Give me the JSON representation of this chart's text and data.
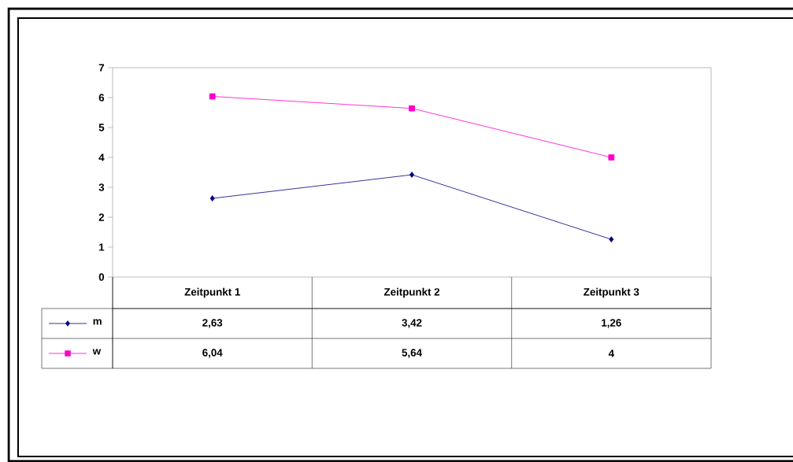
{
  "chart_data": {
    "type": "line",
    "categories": [
      "Zeitpunkt 1",
      "Zeitpunkt 2",
      "Zeitpunkt 3"
    ],
    "series": [
      {
        "name": "m",
        "color": "#000080",
        "marker": "diamond",
        "values": [
          2.63,
          3.42,
          1.26
        ],
        "value_labels": [
          "2,63",
          "3,42",
          "1,26"
        ]
      },
      {
        "name": "w",
        "color": "#ff00cc",
        "marker": "square",
        "values": [
          6.04,
          5.64,
          4
        ],
        "value_labels": [
          "6,04",
          "5,64",
          "4"
        ]
      }
    ],
    "ylim": [
      0,
      7
    ],
    "yticks": [
      0,
      1,
      2,
      3,
      4,
      5,
      6,
      7
    ],
    "grid": false,
    "legend": "bottom"
  }
}
